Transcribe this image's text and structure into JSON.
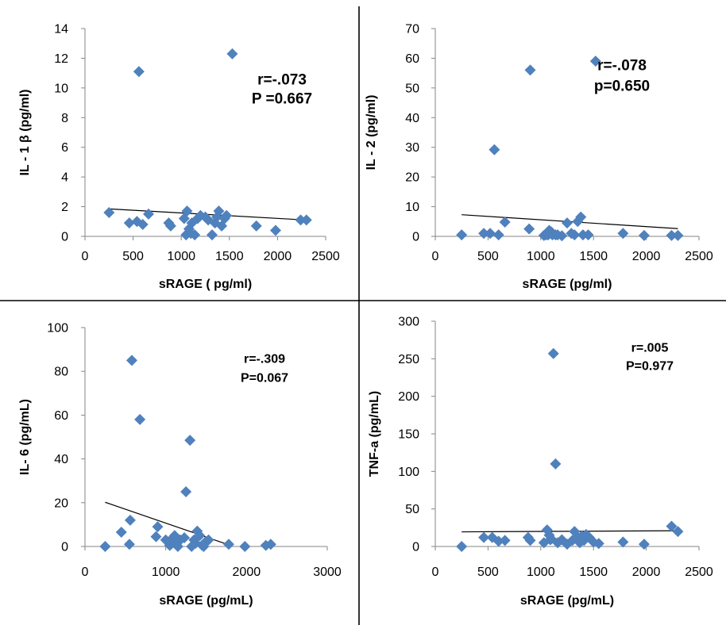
{
  "colors": {
    "marker": "#4F81BD",
    "trendline": "#000000",
    "axis": "#868686",
    "divider": "#000000"
  },
  "chart_data": [
    {
      "type": "scatter",
      "xlabel": "sRAGE ( pg/ml)",
      "ylabel": "IL - 1 β (pg/ml)",
      "xlim": [
        0,
        2500
      ],
      "ylim": [
        0,
        14
      ],
      "xticks": [
        0,
        500,
        1000,
        1500,
        2000,
        2500
      ],
      "yticks": [
        0,
        2,
        4,
        6,
        8,
        10,
        12,
        14
      ],
      "annotation": [
        "r=-.073",
        "P =0.667"
      ],
      "trendline": {
        "x": [
          250,
          2300
        ],
        "y": [
          1.85,
          1.1
        ]
      },
      "points": [
        [
          250,
          1.6
        ],
        [
          460,
          0.9
        ],
        [
          540,
          1.0
        ],
        [
          560,
          11.1
        ],
        [
          600,
          0.8
        ],
        [
          660,
          1.5
        ],
        [
          870,
          0.9
        ],
        [
          890,
          0.7
        ],
        [
          1030,
          1.2
        ],
        [
          1050,
          0.1
        ],
        [
          1060,
          1.7
        ],
        [
          1080,
          0.5
        ],
        [
          1100,
          0.2
        ],
        [
          1110,
          0.9
        ],
        [
          1140,
          0.1
        ],
        [
          1170,
          1.2
        ],
        [
          1200,
          1.4
        ],
        [
          1250,
          1.3
        ],
        [
          1280,
          1.1
        ],
        [
          1320,
          0.1
        ],
        [
          1350,
          0.9
        ],
        [
          1370,
          1.3
        ],
        [
          1390,
          1.7
        ],
        [
          1420,
          0.7
        ],
        [
          1450,
          1.2
        ],
        [
          1470,
          1.4
        ],
        [
          1530,
          12.3
        ],
        [
          1780,
          0.7
        ],
        [
          1980,
          0.4
        ],
        [
          2240,
          1.1
        ],
        [
          2300,
          1.1
        ]
      ]
    },
    {
      "type": "scatter",
      "xlabel": "sRAGE (pg/ml)",
      "ylabel": "IL - 2 (pg/ml)",
      "xlim": [
        0,
        2500
      ],
      "ylim": [
        0,
        70
      ],
      "xticks": [
        0,
        500,
        1000,
        1500,
        2000,
        2500
      ],
      "yticks": [
        0,
        10,
        20,
        30,
        40,
        50,
        60,
        70
      ],
      "annotation": [
        "r=-.078",
        "p=0.650"
      ],
      "trendline": {
        "x": [
          250,
          2300
        ],
        "y": [
          7.3,
          2.6
        ]
      },
      "points": [
        [
          250,
          0.5
        ],
        [
          460,
          1
        ],
        [
          520,
          1
        ],
        [
          560,
          29.2
        ],
        [
          600,
          0.5
        ],
        [
          660,
          4.8
        ],
        [
          890,
          2.5
        ],
        [
          900,
          56
        ],
        [
          1030,
          0.3
        ],
        [
          1050,
          0.5
        ],
        [
          1070,
          0.5
        ],
        [
          1080,
          2
        ],
        [
          1100,
          1.5
        ],
        [
          1110,
          0.5
        ],
        [
          1140,
          0.5
        ],
        [
          1160,
          0.5
        ],
        [
          1200,
          0.2
        ],
        [
          1250,
          4.5
        ],
        [
          1290,
          1
        ],
        [
          1320,
          0.5
        ],
        [
          1350,
          5
        ],
        [
          1380,
          6.5
        ],
        [
          1400,
          0.5
        ],
        [
          1450,
          0.5
        ],
        [
          1520,
          59
        ],
        [
          1780,
          1
        ],
        [
          1980,
          0.3
        ],
        [
          2240,
          0.3
        ],
        [
          2300,
          0.3
        ]
      ]
    },
    {
      "type": "scatter",
      "xlabel": "sRAGE (pg/mL)",
      "ylabel": "IL- 6 (pg/mL)",
      "xlim": [
        0,
        3000
      ],
      "ylim": [
        0,
        100
      ],
      "xticks": [
        0,
        1000,
        2000,
        3000
      ],
      "yticks": [
        0,
        20,
        40,
        60,
        80,
        100
      ],
      "annotation": [
        "r=-.309",
        "P=0.067"
      ],
      "trendline": {
        "x": [
          250,
          1800
        ],
        "y": [
          20.2,
          0.5
        ]
      },
      "points": [
        [
          250,
          0
        ],
        [
          450,
          6.5
        ],
        [
          550,
          1
        ],
        [
          560,
          12
        ],
        [
          580,
          85
        ],
        [
          680,
          58
        ],
        [
          880,
          4.5
        ],
        [
          900,
          9
        ],
        [
          1000,
          3
        ],
        [
          1050,
          0.5
        ],
        [
          1080,
          1.5
        ],
        [
          1090,
          4
        ],
        [
          1110,
          5
        ],
        [
          1130,
          1
        ],
        [
          1150,
          0
        ],
        [
          1180,
          3
        ],
        [
          1230,
          4
        ],
        [
          1250,
          25
        ],
        [
          1300,
          48.5
        ],
        [
          1320,
          0
        ],
        [
          1350,
          3
        ],
        [
          1370,
          1.5
        ],
        [
          1390,
          7
        ],
        [
          1420,
          5
        ],
        [
          1450,
          0.5
        ],
        [
          1470,
          0
        ],
        [
          1490,
          2
        ],
        [
          1530,
          3
        ],
        [
          1780,
          1
        ],
        [
          1980,
          0
        ],
        [
          2240,
          0.5
        ],
        [
          2300,
          1
        ]
      ]
    },
    {
      "type": "scatter",
      "xlabel": "sRAGE (pg/mL)",
      "ylabel": "TNF-a (pg/mL)",
      "xlim": [
        0,
        2500
      ],
      "ylim": [
        0,
        300
      ],
      "xticks": [
        0,
        500,
        1000,
        1500,
        2000,
        2500
      ],
      "yticks": [
        0,
        50,
        100,
        150,
        200,
        250,
        300
      ],
      "annotation": [
        "r=.005",
        "P=0.977"
      ],
      "trendline": {
        "x": [
          250,
          2300
        ],
        "y": [
          19.5,
          21
        ]
      },
      "points": [
        [
          250,
          0
        ],
        [
          460,
          12
        ],
        [
          540,
          12
        ],
        [
          600,
          7
        ],
        [
          660,
          8
        ],
        [
          880,
          12
        ],
        [
          900,
          8
        ],
        [
          1030,
          5
        ],
        [
          1060,
          22
        ],
        [
          1080,
          15
        ],
        [
          1090,
          9
        ],
        [
          1100,
          10
        ],
        [
          1120,
          257
        ],
        [
          1140,
          110
        ],
        [
          1160,
          5
        ],
        [
          1200,
          9
        ],
        [
          1250,
          3
        ],
        [
          1300,
          8
        ],
        [
          1320,
          20
        ],
        [
          1350,
          12
        ],
        [
          1370,
          5
        ],
        [
          1390,
          14
        ],
        [
          1410,
          8
        ],
        [
          1430,
          16
        ],
        [
          1460,
          12
        ],
        [
          1500,
          6
        ],
        [
          1550,
          4
        ],
        [
          1780,
          6
        ],
        [
          1980,
          3
        ],
        [
          2240,
          27
        ],
        [
          2300,
          20
        ]
      ]
    }
  ]
}
